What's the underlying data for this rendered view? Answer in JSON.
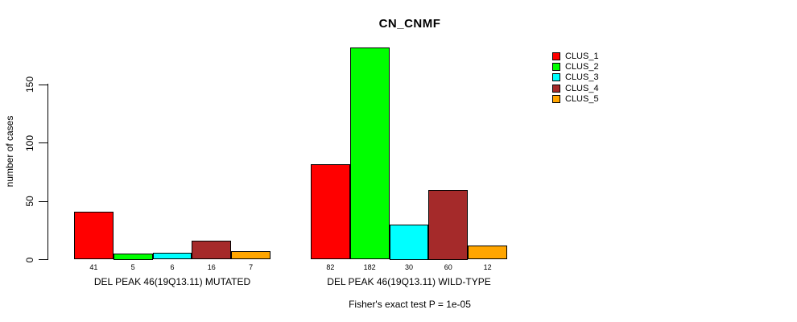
{
  "chart_data": {
    "type": "bar",
    "title": "CN_CNMF",
    "ylabel": "number of cases",
    "xlabel": "",
    "categories": [
      "DEL PEAK 46(19Q13.11) MUTATED",
      "DEL PEAK 46(19Q13.11) WILD-TYPE"
    ],
    "series": [
      {
        "name": "CLUS_1",
        "color": "#FF0000",
        "values": [
          41,
          82
        ]
      },
      {
        "name": "CLUS_2",
        "color": "#00FF00",
        "values": [
          5,
          182
        ]
      },
      {
        "name": "CLUS_3",
        "color": "#00FFFF",
        "values": [
          6,
          30
        ]
      },
      {
        "name": "CLUS_4",
        "color": "#A52A2A",
        "values": [
          16,
          60
        ]
      },
      {
        "name": "CLUS_5",
        "color": "#FFA500",
        "values": [
          7,
          12
        ]
      }
    ],
    "yticks": [
      0,
      50,
      100,
      150
    ],
    "ylim": [
      0,
      185
    ],
    "grid": false,
    "legend_position": "right-outside",
    "bar_value_labels": true,
    "annotation": "Fisher's exact test P = 1e-05"
  }
}
